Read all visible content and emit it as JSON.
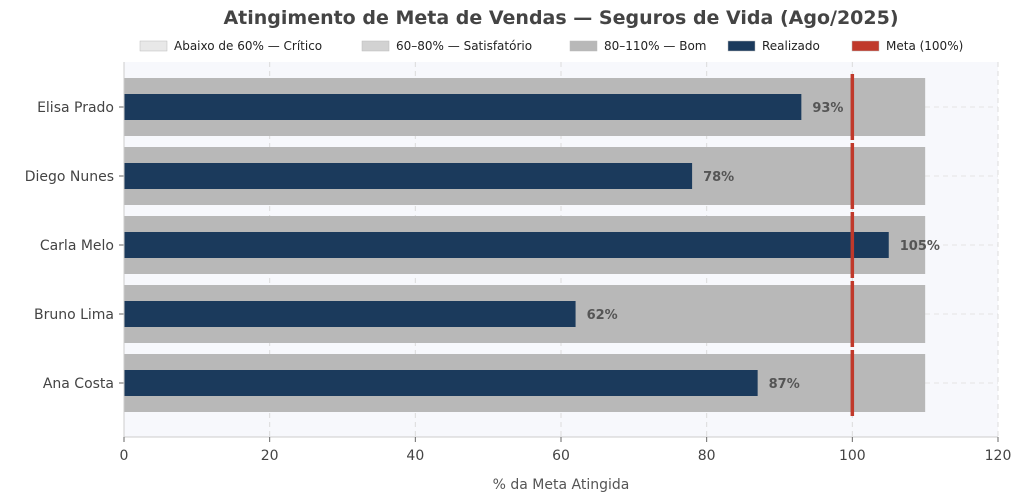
{
  "chart_data": {
    "type": "bar",
    "orientation": "horizontal",
    "title": "Atingimento de Meta de Vendas — Seguros de Vida (Ago/2025)",
    "xlabel": "% da Meta Atingida",
    "ylabel": "",
    "xlim": [
      0,
      120
    ],
    "xticks": [
      0,
      20,
      40,
      60,
      80,
      100,
      120
    ],
    "grid": true,
    "categories": [
      "Elisa Prado",
      "Diego Nunes",
      "Carla Melo",
      "Bruno Lima",
      "Ana Costa"
    ],
    "series": [
      {
        "name": "Realizado",
        "values": [
          93,
          78,
          105,
          62,
          87
        ],
        "color": "#1b3a5c"
      }
    ],
    "value_labels": [
      "93%",
      "78%",
      "105%",
      "62%",
      "87%"
    ],
    "bands": [
      {
        "name": "Abaixo de 60% — Crítico",
        "from": 0,
        "to": 60,
        "color": "#e8e8e8"
      },
      {
        "name": "60–80% — Satisfatório",
        "from": 0,
        "to": 80,
        "color": "#d2d2d2"
      },
      {
        "name": "80–110% — Bom",
        "from": 0,
        "to": 110,
        "color": "#b8b8b8"
      }
    ],
    "target": {
      "name": "Meta (100%)",
      "value": 100,
      "color": "#c0392b"
    },
    "legend_placement": "bottom-right",
    "legend": [
      "Abaixo de 60% — Crítico",
      "60–80% — Satisfatório",
      "80–110% — Bom",
      "Realizado",
      "Meta (100%)"
    ]
  }
}
